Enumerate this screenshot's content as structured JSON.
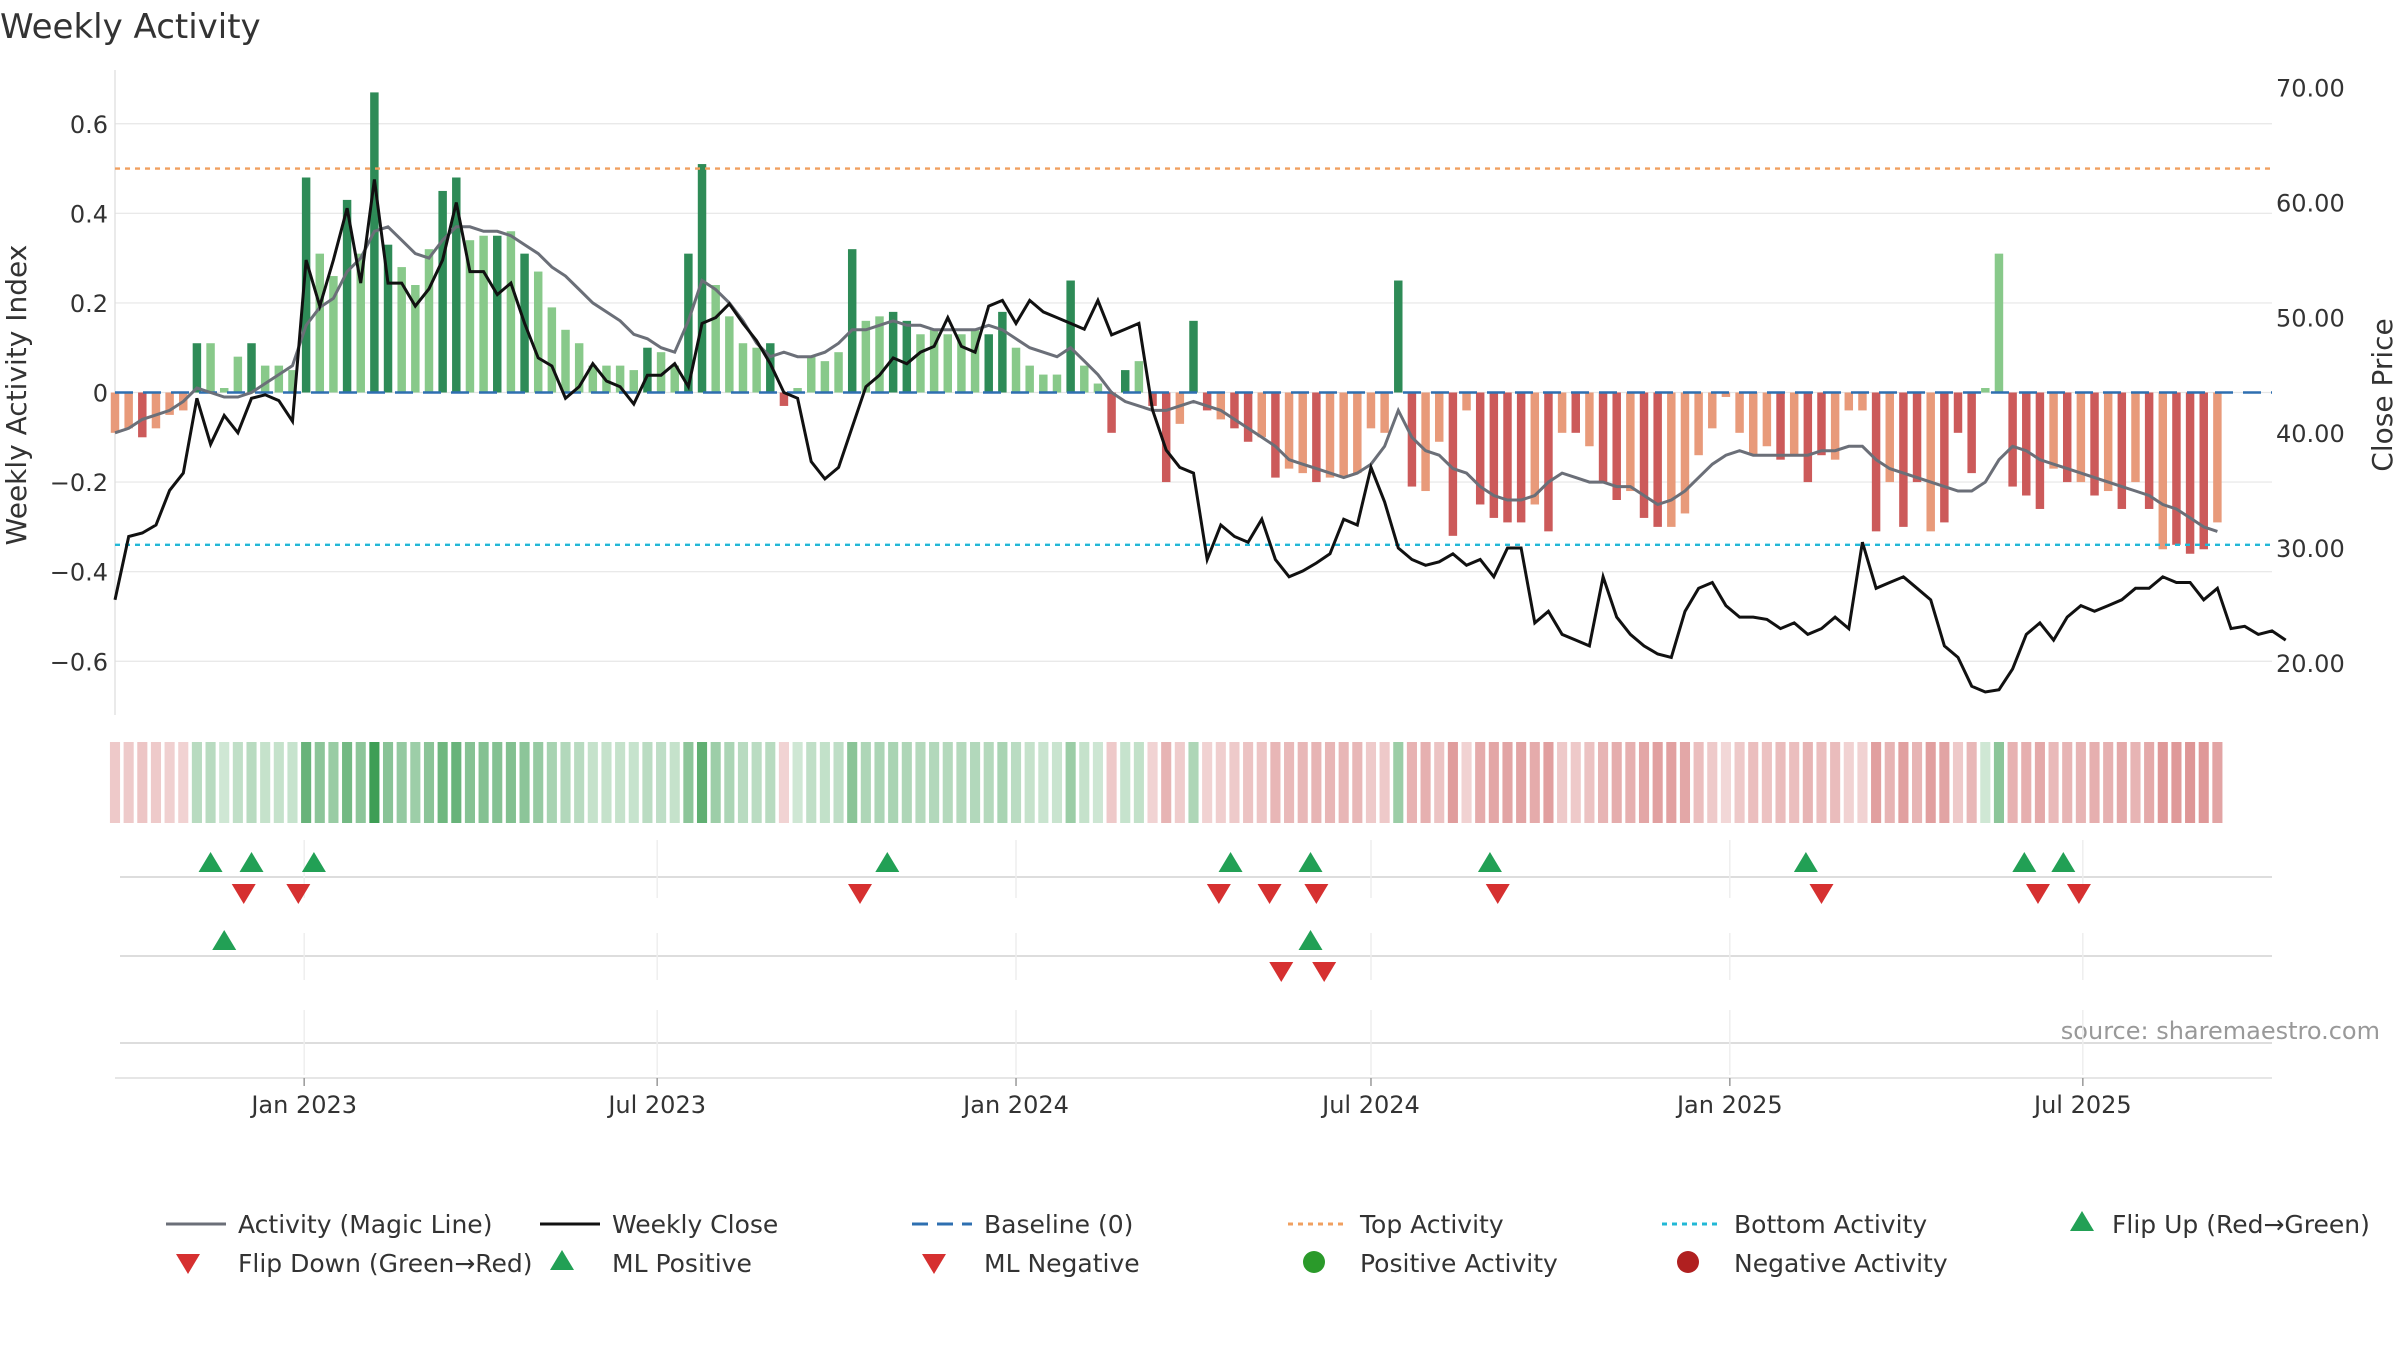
{
  "chart_data": {
    "type": "bar",
    "title": "Weekly Activity",
    "ylabel": "Weekly Activity Index",
    "y2label": "Close Price",
    "ylim": [
      -0.72,
      0.72
    ],
    "y2lim": [
      15.5,
      71.5
    ],
    "yticks": [
      0.6,
      0.4,
      0.2,
      0,
      -0.2,
      -0.4,
      -0.6
    ],
    "ytick_labels": [
      "0.6",
      "0.4",
      "0.2",
      "0",
      "−0.2",
      "−0.4",
      "−0.6"
    ],
    "y2ticks": [
      70,
      60,
      50,
      40,
      30,
      20
    ],
    "y2tick_labels": [
      "70.00",
      "60.00",
      "50.00",
      "40.00",
      "30.00",
      "20.00"
    ],
    "x_start": "2022-09-26",
    "x_end": "2025-10-06",
    "xticks": [
      "2023-01-01",
      "2023-07-01",
      "2024-01-01",
      "2024-07-01",
      "2025-01-01",
      "2025-07-01"
    ],
    "xtick_labels": [
      "Jan 2023",
      "Jul 2023",
      "Jan 2024",
      "Jul 2024",
      "Jan 2025",
      "Jul 2025"
    ],
    "first_week": "2022-09-26",
    "bar_values": [
      -0.09,
      -0.08,
      -0.1,
      -0.08,
      -0.05,
      -0.04,
      0.11,
      0.11,
      0.01,
      0.08,
      0.11,
      0.06,
      0.06,
      0.05,
      0.48,
      0.31,
      0.26,
      0.43,
      0.31,
      0.67,
      0.33,
      0.28,
      0.24,
      0.32,
      0.45,
      0.48,
      0.34,
      0.35,
      0.35,
      0.36,
      0.31,
      0.27,
      0.19,
      0.14,
      0.11,
      0.06,
      0.06,
      0.06,
      0.05,
      0.1,
      0.09,
      0.06,
      0.31,
      0.51,
      0.24,
      0.17,
      0.11,
      0.1,
      0.11,
      -0.03,
      0.01,
      0.08,
      0.07,
      0.09,
      0.32,
      0.16,
      0.17,
      0.18,
      0.16,
      0.13,
      0.14,
      0.13,
      0.13,
      0.14,
      0.13,
      0.18,
      0.1,
      0.06,
      0.04,
      0.04,
      0.25,
      0.06,
      0.02,
      -0.09,
      0.05,
      0.07,
      -0.03,
      -0.2,
      -0.07,
      0.16,
      -0.04,
      -0.06,
      -0.08,
      -0.11,
      -0.1,
      -0.19,
      -0.17,
      -0.18,
      -0.2,
      -0.19,
      -0.19,
      -0.18,
      -0.08,
      -0.09,
      0.25,
      -0.21,
      -0.22,
      -0.11,
      -0.32,
      -0.04,
      -0.25,
      -0.28,
      -0.29,
      -0.29,
      -0.25,
      -0.31,
      -0.09,
      -0.09,
      -0.12,
      -0.2,
      -0.24,
      -0.22,
      -0.28,
      -0.3,
      -0.3,
      -0.27,
      -0.14,
      -0.08,
      -0.01,
      -0.09,
      -0.14,
      -0.12,
      -0.15,
      -0.14,
      -0.2,
      -0.14,
      -0.15,
      -0.04,
      -0.04,
      -0.31,
      -0.2,
      -0.3,
      -0.2,
      -0.31,
      -0.29,
      -0.09,
      -0.18,
      0.01,
      0.31,
      -0.21,
      -0.23,
      -0.26,
      -0.17,
      -0.2,
      -0.2,
      -0.23,
      -0.22,
      -0.26,
      -0.2,
      -0.26,
      -0.35,
      -0.34,
      -0.36,
      -0.35,
      -0.29
    ],
    "bar_shades": [
      1,
      1,
      2,
      1,
      1,
      1,
      2,
      1,
      1,
      1,
      2,
      1,
      1,
      1,
      2,
      1,
      1,
      2,
      1,
      2,
      2,
      1,
      1,
      1,
      2,
      2,
      1,
      1,
      2,
      1,
      2,
      1,
      1,
      1,
      1,
      1,
      1,
      1,
      1,
      2,
      1,
      1,
      2,
      2,
      1,
      1,
      1,
      1,
      2,
      2,
      1,
      1,
      1,
      1,
      2,
      1,
      1,
      2,
      2,
      1,
      1,
      1,
      1,
      1,
      2,
      2,
      1,
      1,
      1,
      1,
      2,
      1,
      1,
      2,
      2,
      1,
      2,
      2,
      1,
      2,
      2,
      1,
      2,
      2,
      1,
      2,
      1,
      1,
      2,
      1,
      1,
      1,
      1,
      1,
      2,
      2,
      1,
      1,
      2,
      1,
      2,
      2,
      2,
      2,
      1,
      2,
      1,
      2,
      1,
      2,
      2,
      1,
      2,
      2,
      1,
      1,
      1,
      1,
      1,
      1,
      1,
      1,
      2,
      1,
      2,
      2,
      1,
      1,
      1,
      2,
      1,
      2,
      2,
      1,
      2,
      2,
      2,
      1,
      1,
      2,
      2,
      2,
      1,
      2,
      1,
      2,
      1,
      2,
      1,
      2,
      1,
      2,
      2,
      2,
      1,
      2
    ],
    "series": [
      {
        "name": "Activity (Magic Line)",
        "color": "#6b6f78",
        "values": [
          -0.09,
          -0.08,
          -0.06,
          -0.05,
          -0.04,
          -0.02,
          0.01,
          0,
          -0.01,
          -0.01,
          0.0,
          0.02,
          0.04,
          0.06,
          0.15,
          0.19,
          0.21,
          0.27,
          0.3,
          0.36,
          0.37,
          0.34,
          0.31,
          0.3,
          0.34,
          0.37,
          0.37,
          0.36,
          0.36,
          0.35,
          0.33,
          0.31,
          0.28,
          0.26,
          0.23,
          0.2,
          0.18,
          0.16,
          0.13,
          0.12,
          0.1,
          0.09,
          0.16,
          0.25,
          0.23,
          0.2,
          0.16,
          0.11,
          0.08,
          0.09,
          0.08,
          0.08,
          0.09,
          0.11,
          0.14,
          0.14,
          0.15,
          0.16,
          0.15,
          0.15,
          0.14,
          0.14,
          0.14,
          0.14,
          0.15,
          0.14,
          0.12,
          0.1,
          0.09,
          0.08,
          0.1,
          0.07,
          0.04,
          0.0,
          -0.02,
          -0.03,
          -0.04,
          -0.04,
          -0.03,
          -0.02,
          -0.03,
          -0.04,
          -0.06,
          -0.08,
          -0.1,
          -0.12,
          -0.15,
          -0.16,
          -0.17,
          -0.18,
          -0.19,
          -0.18,
          -0.16,
          -0.12,
          -0.04,
          -0.1,
          -0.13,
          -0.14,
          -0.17,
          -0.18,
          -0.21,
          -0.23,
          -0.24,
          -0.24,
          -0.23,
          -0.2,
          -0.18,
          -0.19,
          -0.2,
          -0.2,
          -0.21,
          -0.21,
          -0.23,
          -0.25,
          -0.24,
          -0.22,
          -0.19,
          -0.16,
          -0.14,
          -0.13,
          -0.14,
          -0.14,
          -0.14,
          -0.14,
          -0.14,
          -0.13,
          -0.13,
          -0.12,
          -0.12,
          -0.15,
          -0.17,
          -0.18,
          -0.19,
          -0.2,
          -0.21,
          -0.22,
          -0.22,
          -0.2,
          -0.15,
          -0.12,
          -0.13,
          -0.15,
          -0.16,
          -0.17,
          -0.18,
          -0.19,
          -0.2,
          -0.21,
          -0.22,
          -0.23,
          -0.25,
          -0.26,
          -0.28,
          -0.3,
          -0.31
        ]
      },
      {
        "name": "Weekly Close",
        "color": "#111111",
        "values": [
          25.5,
          31,
          31.3,
          32,
          35,
          36.5,
          43,
          39,
          41.5,
          40,
          43,
          43.3,
          42.8,
          41,
          55,
          51,
          55,
          59.5,
          53,
          62,
          53,
          53,
          51,
          52.5,
          55,
          60,
          54,
          54,
          52,
          53,
          49.5,
          46.5,
          45.8,
          43,
          44,
          46,
          44.5,
          44,
          42.5,
          45,
          45,
          46,
          44,
          49.5,
          50,
          51.2,
          49.5,
          48,
          46,
          43.5,
          43,
          37.5,
          36,
          37,
          40.5,
          44,
          45,
          46.5,
          46,
          47,
          47.5,
          50,
          47.5,
          47,
          51,
          51.5,
          49.5,
          51.5,
          50.5,
          50,
          49.5,
          49,
          51.5,
          48.5,
          49,
          49.5,
          42,
          38.5,
          37,
          36.5,
          29,
          32,
          31,
          30.5,
          32.5,
          29,
          27.5,
          28,
          28.7,
          29.5,
          32.5,
          32,
          37,
          34,
          30,
          29,
          28.5,
          28.8,
          29.5,
          28.5,
          29,
          27.5,
          30,
          30,
          23.5,
          24.5,
          22.5,
          22,
          21.5,
          27.5,
          24,
          22.5,
          21.5,
          20.8,
          20.5,
          24.5,
          26.5,
          27,
          25,
          24,
          24,
          23.8,
          23,
          23.5,
          22.5,
          23,
          24,
          23,
          30.5,
          26.5,
          27,
          27.5,
          26.5,
          25.5,
          21.5,
          20.5,
          18,
          17.5,
          17.7,
          19.5,
          22.5,
          23.5,
          22,
          24,
          25,
          24.5,
          25,
          25.5,
          26.5,
          26.5,
          27.5,
          27,
          27,
          25.5,
          26.5,
          23,
          23.2,
          22.5,
          22.8,
          22
        ]
      }
    ],
    "reference_lines": [
      {
        "name": "Baseline (0)",
        "value": 0,
        "color": "#2e6fb0",
        "style": "dashed"
      },
      {
        "name": "Top Activity",
        "value": 0.5,
        "color": "#f0a060",
        "style": "dotted"
      },
      {
        "name": "Bottom Activity",
        "value": -0.34,
        "color": "#22b8d6",
        "style": "dotted"
      }
    ],
    "heat_strip": {
      "description": "weekly activity color strip, same weeks as bars"
    },
    "flip_up_dates": [
      "2022-11-14",
      "2022-12-05",
      "2023-01-06",
      "2023-10-27",
      "2024-04-20",
      "2024-05-31",
      "2024-08-31",
      "2025-02-09",
      "2025-06-01",
      "2025-06-21"
    ],
    "flip_down_dates": [
      "2022-12-01",
      "2022-12-29",
      "2023-10-13",
      "2024-04-14",
      "2024-05-10",
      "2024-06-03",
      "2024-09-04",
      "2025-02-17",
      "2025-06-08",
      "2025-06-29"
    ],
    "ml_positive_dates": [
      "2022-11-21",
      "2024-05-31"
    ],
    "ml_negative_dates": [
      "2024-05-16",
      "2024-06-07"
    ],
    "legend": [
      "Activity (Magic Line)",
      "Weekly Close",
      "Baseline (0)",
      "Top Activity",
      "Bottom Activity",
      "Flip Up (Red→Green)",
      "Flip Down (Green→Red)",
      "ML Positive",
      "ML Negative",
      "Positive Activity",
      "Negative Activity"
    ],
    "source": "source: sharemaestro.com",
    "colors": {
      "pos_dark": "#2e8b57",
      "pos_light": "#88c98a",
      "neg_dark": "#cc5a5a",
      "neg_light": "#e89a7a",
      "flip_up": "#22a055",
      "flip_down": "#d63030",
      "pos_marker": "#2a9a2a",
      "neg_marker": "#b02020",
      "grid": "#e6e6e6"
    }
  }
}
